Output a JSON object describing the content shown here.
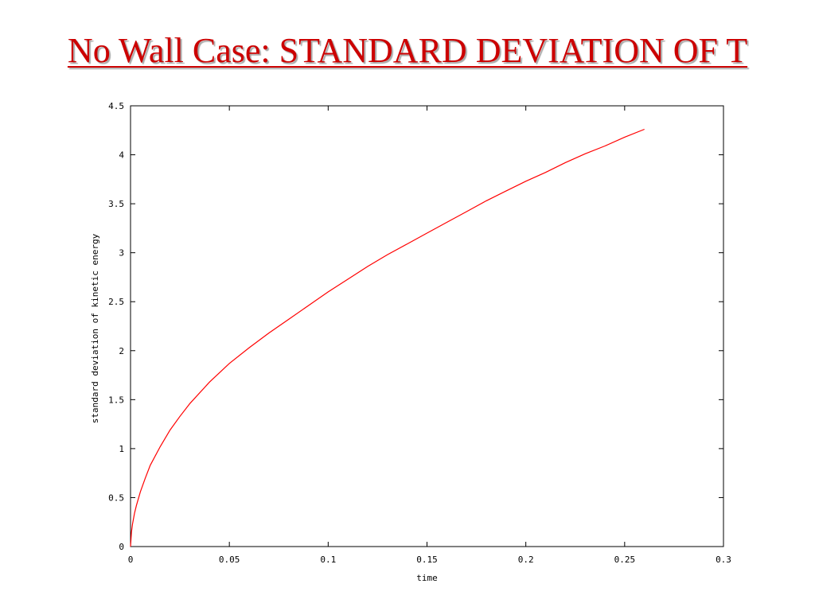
{
  "slide": {
    "title": "No Wall Case: STANDARD DEVIATION OF T"
  },
  "colors": {
    "title": "#cc0000",
    "series": "#ff0000",
    "axes": "#000000"
  },
  "chart_data": {
    "type": "line",
    "xlabel": "time",
    "ylabel": "standard deviation of kinetic energy",
    "xlim": [
      0,
      0.3
    ],
    "ylim": [
      0,
      4.5
    ],
    "xticks": [
      0,
      0.05,
      0.1,
      0.15,
      0.2,
      0.25,
      0.3
    ],
    "yticks": [
      0,
      0.5,
      1,
      1.5,
      2,
      2.5,
      3,
      3.5,
      4,
      4.5
    ],
    "xtick_labels": [
      "0",
      "0.05",
      "0.1",
      "0.15",
      "0.2",
      "0.25",
      "0.3"
    ],
    "ytick_labels": [
      "0",
      "0.5",
      "1",
      "1.5",
      "2",
      "2.5",
      "3",
      "3.5",
      "4",
      "4.5"
    ],
    "grid": false,
    "series": [
      {
        "color": "#ff0000",
        "x": [
          0,
          0.0005,
          0.001,
          0.002,
          0.003,
          0.005,
          0.0075,
          0.01,
          0.015,
          0.02,
          0.025,
          0.03,
          0.04,
          0.05,
          0.06,
          0.07,
          0.08,
          0.09,
          0.1,
          0.11,
          0.12,
          0.13,
          0.14,
          0.15,
          0.16,
          0.17,
          0.18,
          0.19,
          0.2,
          0.21,
          0.22,
          0.23,
          0.24,
          0.25,
          0.26
        ],
        "y": [
          0,
          0.15,
          0.23,
          0.34,
          0.42,
          0.56,
          0.7,
          0.83,
          1.02,
          1.19,
          1.33,
          1.46,
          1.68,
          1.87,
          2.03,
          2.18,
          2.32,
          2.46,
          2.6,
          2.73,
          2.86,
          2.98,
          3.09,
          3.2,
          3.31,
          3.42,
          3.53,
          3.63,
          3.73,
          3.82,
          3.92,
          4.01,
          4.09,
          4.18,
          4.26
        ]
      }
    ]
  }
}
